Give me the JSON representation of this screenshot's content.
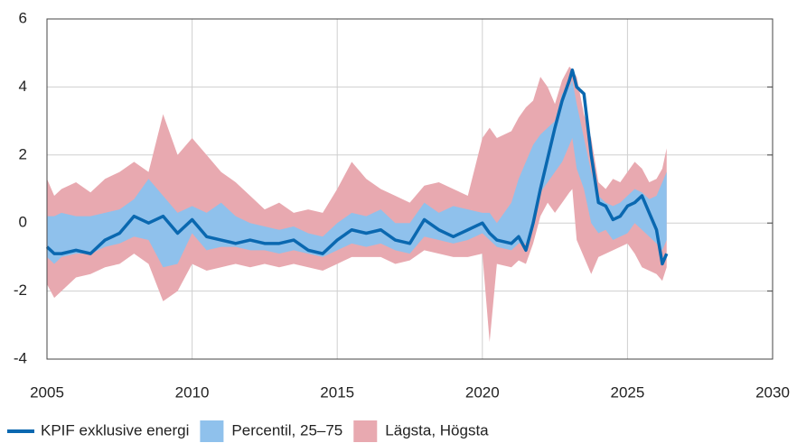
{
  "chart_data": {
    "type": "line",
    "x": [
      2005,
      2005.25,
      2005.5,
      2006,
      2006.5,
      2007,
      2007.5,
      2008,
      2008.5,
      2009,
      2009.5,
      2010,
      2010.5,
      2011,
      2011.5,
      2012,
      2012.5,
      2013,
      2013.5,
      2014,
      2014.5,
      2015,
      2015.5,
      2016,
      2016.5,
      2017,
      2017.5,
      2018,
      2018.5,
      2019,
      2019.5,
      2020,
      2020.25,
      2020.5,
      2021,
      2021.25,
      2021.5,
      2021.75,
      2022,
      2022.25,
      2022.5,
      2022.75,
      2023,
      2023.1,
      2023.25,
      2023.5,
      2023.75,
      2024,
      2024.25,
      2024.5,
      2024.75,
      2025,
      2025.25,
      2025.5,
      2025.75,
      2026,
      2026.2,
      2026.35
    ],
    "series": [
      {
        "name": "Lägsta, Högsta",
        "color": "#e8a9b0",
        "kind": "band",
        "low": [
          -1.8,
          -2.2,
          -2.0,
          -1.6,
          -1.5,
          -1.3,
          -1.2,
          -0.9,
          -1.2,
          -2.3,
          -2.0,
          -1.2,
          -1.4,
          -1.3,
          -1.2,
          -1.3,
          -1.2,
          -1.3,
          -1.2,
          -1.3,
          -1.4,
          -1.2,
          -1.0,
          -1.0,
          -1.0,
          -1.2,
          -1.1,
          -0.8,
          -0.9,
          -1.0,
          -1.0,
          -0.9,
          -3.5,
          -1.2,
          -1.3,
          -1.1,
          -1.2,
          -0.6,
          0.2,
          0.6,
          0.3,
          0.6,
          0.9,
          1.0,
          -0.5,
          -1.0,
          -1.5,
          -1.0,
          -0.9,
          -0.8,
          -0.7,
          -0.6,
          -0.9,
          -1.3,
          -1.4,
          -1.5,
          -1.7,
          -1.3
        ],
        "high": [
          1.3,
          0.8,
          1.0,
          1.2,
          0.9,
          1.3,
          1.5,
          1.8,
          1.5,
          3.2,
          2.0,
          2.5,
          2.0,
          1.5,
          1.2,
          0.8,
          0.4,
          0.6,
          0.3,
          0.4,
          0.3,
          1.0,
          1.8,
          1.3,
          1.0,
          0.8,
          0.6,
          1.1,
          1.2,
          1.0,
          0.8,
          2.5,
          2.8,
          2.5,
          2.7,
          3.1,
          3.4,
          3.6,
          4.3,
          4.0,
          3.5,
          4.2,
          4.6,
          4.5,
          4.3,
          3.2,
          2.5,
          1.2,
          1.0,
          1.3,
          1.2,
          1.5,
          1.8,
          1.6,
          1.2,
          1.3,
          1.6,
          2.2
        ]
      },
      {
        "name": "Percentil, 25–75",
        "color": "#8fc1ec",
        "kind": "band",
        "low": [
          -1.0,
          -1.2,
          -1.0,
          -0.9,
          -0.9,
          -0.7,
          -0.6,
          -0.4,
          -0.5,
          -1.3,
          -1.2,
          -0.3,
          -0.8,
          -0.7,
          -0.7,
          -0.8,
          -0.8,
          -0.9,
          -0.8,
          -0.9,
          -1.0,
          -0.8,
          -0.6,
          -0.7,
          -0.6,
          -0.8,
          -0.9,
          -0.4,
          -0.5,
          -0.6,
          -0.5,
          -0.3,
          -0.5,
          -0.7,
          -0.8,
          -0.6,
          -0.6,
          -0.2,
          0.9,
          1.2,
          1.5,
          1.8,
          2.3,
          2.5,
          1.6,
          1.0,
          0.0,
          -0.3,
          -0.2,
          -0.5,
          -0.4,
          -0.3,
          0.0,
          -0.2,
          -0.4,
          -0.6,
          -0.8,
          -0.5
        ],
        "high": [
          0.2,
          0.2,
          0.3,
          0.2,
          0.2,
          0.3,
          0.4,
          0.7,
          1.3,
          0.8,
          0.3,
          0.5,
          0.3,
          0.6,
          0.2,
          0.0,
          -0.1,
          -0.2,
          -0.1,
          -0.3,
          -0.4,
          0.0,
          0.3,
          0.2,
          0.4,
          0.0,
          0.0,
          0.6,
          0.3,
          0.5,
          0.4,
          0.3,
          0.3,
          0.0,
          0.6,
          1.3,
          1.8,
          2.3,
          2.6,
          2.8,
          3.0,
          3.8,
          4.0,
          4.2,
          3.5,
          2.5,
          1.5,
          0.8,
          0.6,
          0.5,
          0.6,
          0.8,
          1.0,
          0.9,
          0.7,
          0.8,
          1.2,
          1.5
        ]
      },
      {
        "name": "KPIF exklusive energi",
        "color": "#0a68b0",
        "kind": "line",
        "values": [
          -0.7,
          -0.9,
          -0.9,
          -0.8,
          -0.9,
          -0.5,
          -0.3,
          0.2,
          0.0,
          0.2,
          -0.3,
          0.1,
          -0.4,
          -0.5,
          -0.6,
          -0.5,
          -0.6,
          -0.6,
          -0.5,
          -0.8,
          -0.9,
          -0.5,
          -0.2,
          -0.3,
          -0.2,
          -0.5,
          -0.6,
          0.1,
          -0.2,
          -0.4,
          -0.2,
          0.0,
          -0.3,
          -0.5,
          -0.6,
          -0.4,
          -0.8,
          0.0,
          1.0,
          1.9,
          2.8,
          3.6,
          4.2,
          4.5,
          4.0,
          3.8,
          2.0,
          0.6,
          0.5,
          0.1,
          0.2,
          0.5,
          0.6,
          0.8,
          0.3,
          -0.2,
          -1.2,
          -0.9
        ]
      }
    ],
    "legend_order": [
      2,
      1,
      0
    ],
    "xlim": [
      2005,
      2030
    ],
    "xticks": [
      2005,
      2010,
      2015,
      2020,
      2025,
      2030
    ],
    "ylim": [
      -4,
      6
    ],
    "yticks": [
      -4,
      -2,
      0,
      2,
      4,
      6
    ],
    "grid": true,
    "legend": "bottom"
  }
}
